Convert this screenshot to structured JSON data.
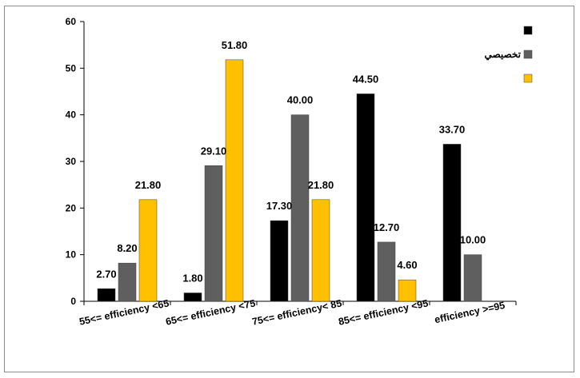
{
  "chart_data": {
    "type": "bar",
    "title": "",
    "xlabel": "",
    "ylabel": "",
    "ylim": [
      0,
      60
    ],
    "yticks": [
      0,
      10,
      20,
      30,
      40,
      50,
      60
    ],
    "grid": false,
    "legend_position": "right",
    "categories": [
      "55<= efficiency <65",
      "65<= efficiency <75",
      "75<= efficiency< 85",
      "85<= efficiency <95",
      "efficiency >=95"
    ],
    "series": [
      {
        "name": "",
        "color": "#000000",
        "values": [
          2.7,
          1.8,
          17.3,
          44.5,
          33.7
        ]
      },
      {
        "name": "تخصيصي",
        "color": "#5f5f5f",
        "values": [
          8.2,
          29.1,
          40.0,
          12.7,
          10.0
        ]
      },
      {
        "name": "",
        "color": "#ffc000",
        "values": [
          21.8,
          51.8,
          21.8,
          4.6,
          null
        ]
      }
    ]
  }
}
